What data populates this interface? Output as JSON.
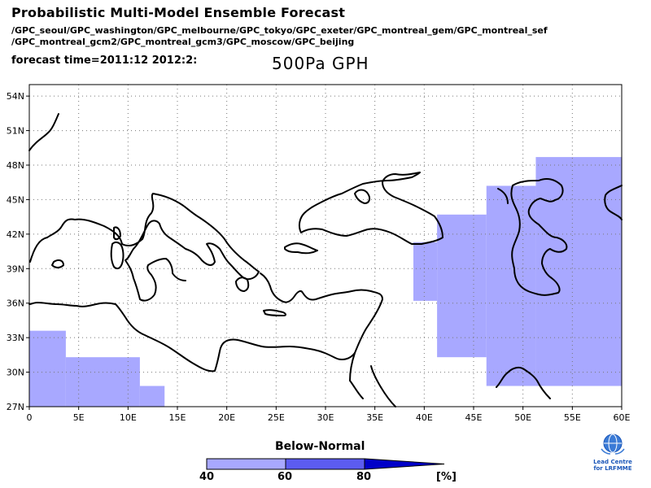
{
  "header": {
    "title": "Probabilistic Multi-Model Ensemble Forecast",
    "models_line1": "/GPC_seoul/GPC_washington/GPC_melbourne/GPC_tokyo/GPC_exeter/GPC_montreal_gem/GPC_montreal_sef",
    "models_line2": "/GPC_montreal_gcm2/GPC_montreal_gcm3/GPC_moscow/GPC_beijing",
    "forecast_time": "forecast time=2011:12 2012:2:",
    "variable": "500Pa GPH"
  },
  "map": {
    "lon_range": [
      0,
      60
    ],
    "lat_range": [
      27,
      55
    ],
    "lon_ticks": [
      "0",
      "5E",
      "10E",
      "15E",
      "20E",
      "25E",
      "30E",
      "35E",
      "40E",
      "45E",
      "50E",
      "55E",
      "60E"
    ],
    "lat_ticks": [
      "27N",
      "30N",
      "33N",
      "36N",
      "39N",
      "42N",
      "45N",
      "48N",
      "51N",
      "54N"
    ],
    "grid": "dotted",
    "shading_color": "#a8a8ff"
  },
  "legend": {
    "title": "Below-Normal",
    "labels": [
      "40",
      "60",
      "80",
      "[%]"
    ],
    "colors": [
      "#a8a8ff",
      "#5c5cf0",
      "#0000c8"
    ]
  },
  "logo": {
    "line1": "Lead Centre",
    "line2": "for LRFMME"
  }
}
